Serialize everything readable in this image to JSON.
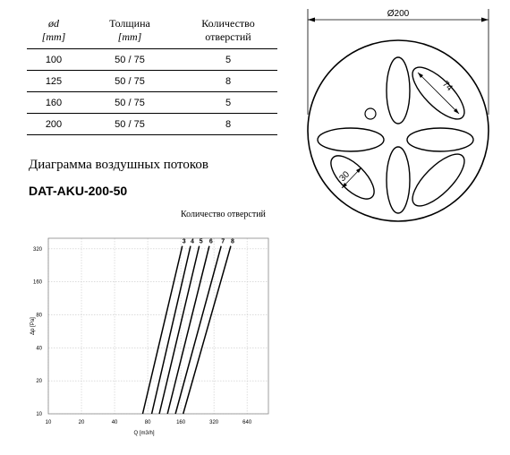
{
  "table": {
    "headers": [
      {
        "line1": "ød",
        "line2": "[mm]"
      },
      {
        "line1": "Толщина",
        "line2": "[mm]"
      },
      {
        "line1": "Количество",
        "line2": "отверстий"
      }
    ],
    "rows": [
      [
        "100",
        "50 / 75",
        "5"
      ],
      [
        "125",
        "50 / 75",
        "8"
      ],
      [
        "160",
        "50 / 75",
        "5"
      ],
      [
        "200",
        "50 / 75",
        "8"
      ]
    ]
  },
  "diagram_heading": "Диаграмма воздушных потоков",
  "model_code": "DAT-AKU-200-50",
  "holes_label": "Количество отверстий",
  "drawing": {
    "diameter_label": "Ø200",
    "ellipse_long_label": "74",
    "ellipse_short_label": "30"
  },
  "chart_data": {
    "type": "line",
    "xlabel": "Q [m3/h]",
    "ylabel": "Δp [Pa]",
    "x_scale": "log",
    "y_scale": "log",
    "x_ticks": [
      10,
      20,
      40,
      80,
      160,
      320,
      640
    ],
    "x_tick_labels": [
      "10",
      "20",
      "40",
      "80",
      "160",
      "320",
      "640"
    ],
    "y_ticks": [
      10,
      20,
      40,
      80,
      160,
      320
    ],
    "y_tick_labels": [
      "10",
      "20",
      "40",
      "80",
      "160",
      "320"
    ],
    "xlim": [
      10,
      1000
    ],
    "ylim": [
      10,
      400
    ],
    "grid": true,
    "series": [
      {
        "name": "3",
        "x": [
          72,
          165
        ],
        "y": [
          10,
          340
        ]
      },
      {
        "name": "4",
        "x": [
          87,
          196
        ],
        "y": [
          10,
          340
        ]
      },
      {
        "name": "5",
        "x": [
          102,
          235
        ],
        "y": [
          10,
          340
        ]
      },
      {
        "name": "6",
        "x": [
          121,
          290
        ],
        "y": [
          10,
          340
        ]
      },
      {
        "name": "7",
        "x": [
          143,
          372
        ],
        "y": [
          10,
          340
        ]
      },
      {
        "name": "8",
        "x": [
          168,
          455
        ],
        "y": [
          10,
          340
        ]
      }
    ]
  }
}
